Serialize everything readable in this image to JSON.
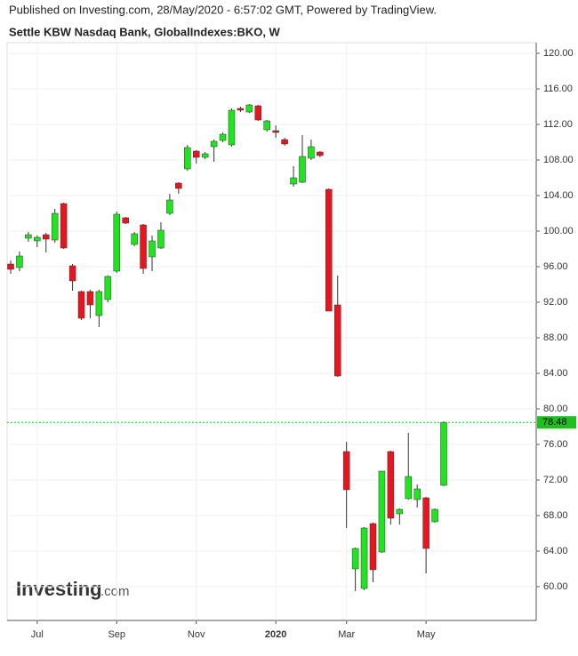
{
  "chart_data": {
    "type": "candlestick",
    "caption": "Published on Investing.com, 28/May/2020 - 6:57:02 GMT, Powered by TradingView.",
    "title": "Settle KBW Nasdaq Bank, GlobalIndexes:BKO, W",
    "watermark": "Investing",
    "watermark_suffix": ".com",
    "categories": [
      null,
      null,
      null,
      "Jul",
      null,
      null,
      null,
      null,
      null,
      null,
      null,
      null,
      "Sep",
      null,
      null,
      null,
      null,
      null,
      null,
      null,
      null,
      "Nov",
      null,
      null,
      null,
      null,
      null,
      null,
      null,
      null,
      "2020",
      null,
      null,
      null,
      null,
      null,
      null,
      null,
      "Mar",
      null,
      null,
      null,
      null,
      null,
      null,
      null,
      null,
      "May",
      null,
      null
    ],
    "open": [
      96.3,
      95.9,
      99.2,
      98.9,
      99.6,
      99.0,
      103.1,
      96.1,
      93.2,
      93.2,
      90.5,
      92.3,
      95.5,
      101.5,
      98.5,
      100.7,
      97.1,
      98.1,
      102.0,
      105.4,
      107.0,
      109.0,
      108.3,
      109.5,
      110.2,
      109.7,
      113.8,
      113.4,
      114.1,
      111.4,
      111.3,
      110.3,
      105.3,
      105.5,
      108.2,
      108.9,
      104.7,
      91.7,
      75.2,
      62.0,
      59.8,
      67.1,
      63.9,
      75.2,
      68.2,
      69.9,
      69.8,
      70.0,
      67.3,
      71.4
    ],
    "high": [
      96.7,
      97.7,
      99.9,
      99.5,
      99.8,
      102.5,
      103.2,
      96.3,
      93.3,
      93.4,
      93.4,
      95.0,
      102.2,
      101.6,
      99.9,
      100.8,
      99.5,
      101.0,
      104.2,
      105.5,
      109.7,
      109.1,
      108.9,
      110.3,
      111.1,
      113.8,
      114.0,
      114.3,
      114.2,
      112.5,
      111.9,
      110.5,
      107.3,
      110.8,
      110.3,
      109.0,
      104.8,
      95.0,
      76.3,
      64.4,
      66.7,
      67.2,
      73.0,
      75.3,
      68.8,
      77.3,
      71.5,
      70.1,
      68.8,
      78.6
    ],
    "low": [
      95.2,
      95.5,
      98.8,
      98.2,
      97.6,
      98.7,
      98.0,
      93.3,
      90.0,
      90.2,
      89.2,
      92.0,
      95.3,
      100.8,
      98.3,
      95.2,
      95.5,
      98.0,
      101.8,
      104.2,
      106.8,
      107.6,
      108.1,
      107.8,
      110.0,
      109.5,
      113.4,
      113.3,
      112.4,
      111.2,
      110.5,
      109.6,
      105.0,
      105.4,
      108.0,
      108.3,
      91.0,
      83.6,
      66.6,
      59.5,
      59.6,
      60.5,
      63.8,
      67.0,
      67.0,
      69.8,
      68.9,
      61.5,
      67.2,
      71.3
    ],
    "close": [
      95.7,
      97.2,
      99.6,
      99.3,
      99.1,
      102.0,
      98.1,
      94.4,
      90.2,
      91.7,
      93.2,
      94.9,
      101.9,
      100.9,
      99.7,
      95.8,
      98.9,
      100.1,
      103.5,
      104.8,
      109.4,
      108.3,
      108.7,
      110.1,
      110.9,
      113.6,
      113.6,
      114.2,
      112.5,
      112.4,
      111.1,
      109.8,
      106.0,
      108.4,
      109.5,
      108.5,
      91.0,
      83.7,
      70.9,
      64.3,
      66.6,
      61.9,
      73.0,
      67.7,
      68.7,
      72.4,
      71.0,
      64.3,
      68.7,
      78.48
    ],
    "up_color": "#1de61d",
    "down_color": "#e8141e",
    "last_price": 78.48,
    "last_price_color": "#1fbf1f",
    "ylim": [
      56.2,
      121.2
    ],
    "yticks": [
      {
        "value": 60,
        "label": "60.00"
      },
      {
        "value": 64,
        "label": "64.00"
      },
      {
        "value": 68,
        "label": "68.00"
      },
      {
        "value": 72,
        "label": "72.00"
      },
      {
        "value": 76,
        "label": "76.00"
      },
      {
        "value": 80,
        "label": "80.00"
      },
      {
        "value": 84,
        "label": "84.00"
      },
      {
        "value": 88,
        "label": "88.00"
      },
      {
        "value": 92,
        "label": "92.00"
      },
      {
        "value": 96,
        "label": "96.00"
      },
      {
        "value": 100,
        "label": "100.00"
      },
      {
        "value": 104,
        "label": "104.00"
      },
      {
        "value": 108,
        "label": "108.00"
      },
      {
        "value": 112,
        "label": "112.00"
      },
      {
        "value": 116,
        "label": "116.00"
      },
      {
        "value": 120,
        "label": "120.00"
      }
    ],
    "grid": true
  }
}
